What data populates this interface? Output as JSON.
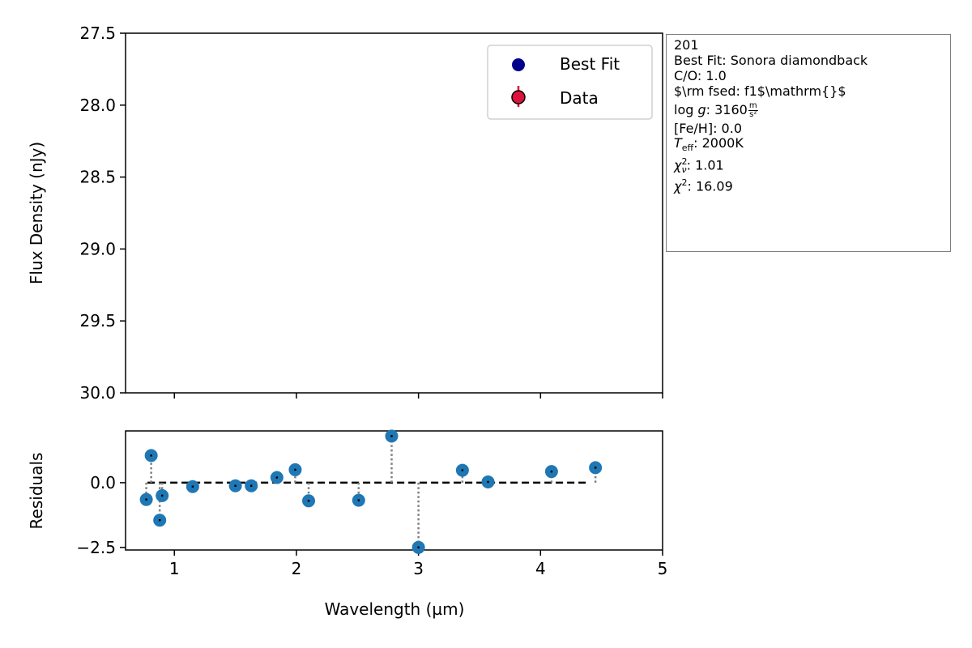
{
  "chart_data": [
    {
      "type": "scatter",
      "panel": "main",
      "ylabel": "Flux Density (nJy)",
      "ylim": [
        30.0,
        27.5
      ],
      "y_inverted": true,
      "yticks": [
        27.5,
        28.0,
        28.5,
        29.0,
        29.5,
        30.0
      ],
      "ytick_labels": [
        "27.5",
        "28.0",
        "28.5",
        "29.0",
        "29.5",
        "30.0"
      ],
      "xlim": [
        0.6,
        5.0
      ],
      "xticks": [
        1,
        2,
        3,
        4,
        5
      ],
      "legend": {
        "placement": "top-right",
        "entries": [
          {
            "label": "Best Fit",
            "color": "#00008b",
            "marker": "circle"
          },
          {
            "label": "Data",
            "color": "#dc143c",
            "marker": "circle-errorbar"
          }
        ]
      },
      "series": []
    },
    {
      "type": "scatter",
      "panel": "residuals",
      "xlabel": "Wavelength (µm)",
      "ylabel": "Residuals",
      "xlim": [
        0.6,
        5.0
      ],
      "ylim": [
        -2.6,
        2.0
      ],
      "xticks": [
        1,
        2,
        3,
        4,
        5
      ],
      "xtick_labels": [
        "1",
        "2",
        "3",
        "4",
        "5"
      ],
      "yticks": [
        -2.5,
        0.0
      ],
      "ytick_labels": [
        "−2.5",
        "0.0"
      ],
      "zero_line": {
        "x_start": 0.78,
        "x_end": 4.4,
        "style": "dashed",
        "color": "#000000"
      },
      "point_color": "#1f77b4",
      "points": [
        {
          "x": 0.77,
          "y": -0.65
        },
        {
          "x": 0.81,
          "y": 1.05
        },
        {
          "x": 0.88,
          "y": -1.45
        },
        {
          "x": 0.9,
          "y": -0.5
        },
        {
          "x": 1.15,
          "y": -0.15
        },
        {
          "x": 1.5,
          "y": -0.12
        },
        {
          "x": 1.63,
          "y": -0.12
        },
        {
          "x": 1.84,
          "y": 0.2
        },
        {
          "x": 1.99,
          "y": 0.5
        },
        {
          "x": 2.1,
          "y": -0.7
        },
        {
          "x": 2.51,
          "y": -0.68
        },
        {
          "x": 2.78,
          "y": 1.8
        },
        {
          "x": 3.0,
          "y": -2.5
        },
        {
          "x": 3.36,
          "y": 0.48
        },
        {
          "x": 3.57,
          "y": 0.03
        },
        {
          "x": 4.09,
          "y": 0.43
        },
        {
          "x": 4.45,
          "y": 0.58
        }
      ]
    }
  ],
  "infobox": {
    "id": "201",
    "best_fit": "Best Fit: Sonora diamondback",
    "co": "C/O: 1.0",
    "fsed": "$\\rm fsed: f1$\\mathrm{}$",
    "logg_label": "log",
    "logg_var": "g",
    "logg_value": ": 3160",
    "logg_unit_num": "m",
    "logg_unit_den": "s²",
    "feh": "[Fe/H]: 0.0",
    "teff_var": "T",
    "teff_sub": "eff",
    "teff_value": ": 2000K",
    "chinu_var": "χ",
    "chinu_sup": "2",
    "chinu_sub": "ν",
    "chinu_value": ": 1.01",
    "chi2_var": "χ",
    "chi2_sup": "2",
    "chi2_value": ": 16.09"
  }
}
